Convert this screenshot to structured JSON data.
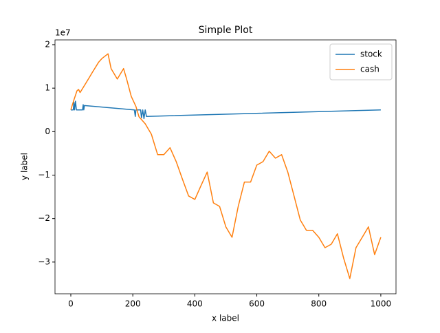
{
  "chart_data": {
    "type": "line",
    "title": "Simple Plot",
    "xlabel": "x label",
    "ylabel": "y label",
    "y_offset_label": "1e7",
    "xlim": [
      -51,
      1049
    ],
    "ylim": [
      -3.73,
      2.11
    ],
    "xticks": [
      0,
      200,
      400,
      600,
      800,
      1000
    ],
    "yticks": [
      {
        "value": -3,
        "label": "−3"
      },
      {
        "value": -2,
        "label": "−2"
      },
      {
        "value": -1,
        "label": "−1"
      },
      0,
      1,
      2
    ],
    "legend": "upper right",
    "series": [
      {
        "name": "stock",
        "color": "#1f77b4",
        "x": [
          0,
          8,
          10,
          12,
          15,
          18,
          38,
          40,
          42,
          44,
          205,
          208,
          210,
          225,
          228,
          232,
          236,
          240,
          244,
          1000
        ],
        "values": [
          0.5,
          0.5,
          0.68,
          0.5,
          0.7,
          0.5,
          0.5,
          0.62,
          0.5,
          0.6,
          0.5,
          0.35,
          0.5,
          0.5,
          0.32,
          0.5,
          0.3,
          0.5,
          0.35,
          0.5
        ]
      },
      {
        "name": "cash",
        "color": "#ff7f0e",
        "x": [
          0,
          10,
          20,
          25,
          30,
          50,
          70,
          90,
          100,
          120,
          130,
          150,
          170,
          180,
          195,
          210,
          220,
          240,
          260,
          280,
          300,
          320,
          340,
          360,
          380,
          400,
          420,
          440,
          460,
          480,
          500,
          520,
          540,
          560,
          580,
          600,
          620,
          640,
          660,
          680,
          700,
          720,
          740,
          760,
          780,
          800,
          820,
          840,
          860,
          880,
          900,
          920,
          940,
          960,
          980,
          1000
        ],
        "values": [
          0.5,
          0.73,
          0.94,
          0.97,
          0.9,
          1.13,
          1.37,
          1.6,
          1.68,
          1.79,
          1.45,
          1.21,
          1.45,
          1.21,
          0.81,
          0.58,
          0.34,
          0.18,
          -0.06,
          -0.53,
          -0.53,
          -0.37,
          -0.69,
          -1.09,
          -1.48,
          -1.56,
          -1.24,
          -0.93,
          -1.64,
          -1.72,
          -2.19,
          -2.43,
          -1.72,
          -1.16,
          -1.16,
          -0.77,
          -0.69,
          -0.45,
          -0.61,
          -0.53,
          -0.93,
          -1.48,
          -2.03,
          -2.27,
          -2.27,
          -2.43,
          -2.67,
          -2.59,
          -2.35,
          -2.91,
          -3.38,
          -2.67,
          -2.43,
          -2.19,
          -2.83,
          -2.43
        ]
      }
    ]
  }
}
